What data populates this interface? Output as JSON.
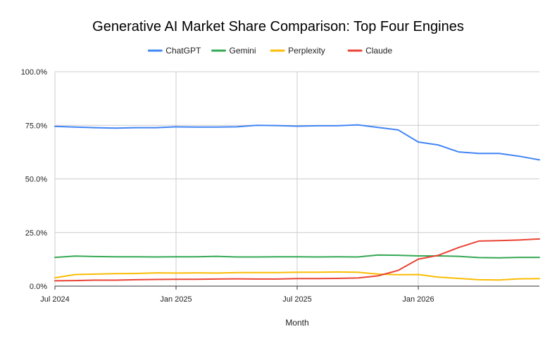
{
  "chart_data": {
    "type": "line",
    "title": "Generative AI Market Share Comparison: Top Four Engines",
    "xlabel": "Month",
    "ylabel": "",
    "ylim": [
      0,
      100
    ],
    "y_ticks": [
      "0.0%",
      "25.0%",
      "50.0%",
      "75.0%",
      "100.0%"
    ],
    "y_tick_values": [
      0,
      25,
      50,
      75,
      100
    ],
    "x_ticks": [
      "Jul 2024",
      "Jan 2025",
      "Jul 2025",
      "Jan 2026"
    ],
    "x_tick_values": [
      "2024-07",
      "2025-01",
      "2025-07",
      "2026-01"
    ],
    "x": [
      "2024-07",
      "2024-08",
      "2024-09",
      "2024-10",
      "2024-11",
      "2024-12",
      "2025-01",
      "2025-02",
      "2025-03",
      "2025-04",
      "2025-05",
      "2025-06",
      "2025-07",
      "2025-08",
      "2025-09",
      "2025-10",
      "2025-11",
      "2025-12",
      "2026-01",
      "2026-02",
      "2026-03",
      "2026-04",
      "2026-05",
      "2026-06",
      "2026-07"
    ],
    "grid": true,
    "legend_position": "top",
    "series": [
      {
        "name": "ChatGPT",
        "color": "#4285F4",
        "values": [
          74.5,
          74.2,
          73.9,
          73.7,
          73.9,
          73.9,
          74.3,
          74.2,
          74.2,
          74.3,
          75.0,
          74.9,
          74.6,
          74.8,
          74.8,
          75.2,
          74.0,
          72.9,
          67.2,
          65.8,
          62.6,
          61.9,
          61.9,
          60.6,
          58.9
        ]
      },
      {
        "name": "Gemini",
        "color": "#34A853",
        "values": [
          13.4,
          14.0,
          13.8,
          13.7,
          13.7,
          13.6,
          13.7,
          13.7,
          13.9,
          13.6,
          13.6,
          13.7,
          13.7,
          13.6,
          13.7,
          13.6,
          14.5,
          14.4,
          14.1,
          14.1,
          13.9,
          13.3,
          13.2,
          13.4,
          13.4
        ]
      },
      {
        "name": "Perplexity",
        "color": "#FBBC04",
        "values": [
          3.9,
          5.4,
          5.6,
          5.8,
          5.9,
          6.2,
          6.1,
          6.2,
          6.1,
          6.3,
          6.3,
          6.3,
          6.5,
          6.5,
          6.6,
          6.5,
          5.6,
          5.3,
          5.4,
          4.2,
          3.6,
          3.0,
          2.9,
          3.4,
          3.5
        ]
      },
      {
        "name": "Claude",
        "color": "#EA4335",
        "values": [
          2.5,
          2.6,
          2.8,
          2.8,
          3.0,
          3.1,
          3.2,
          3.2,
          3.3,
          3.4,
          3.3,
          3.3,
          3.5,
          3.5,
          3.6,
          3.8,
          4.8,
          7.3,
          12.6,
          14.4,
          18.0,
          21.0,
          21.2,
          21.5,
          22.0
        ]
      }
    ]
  }
}
